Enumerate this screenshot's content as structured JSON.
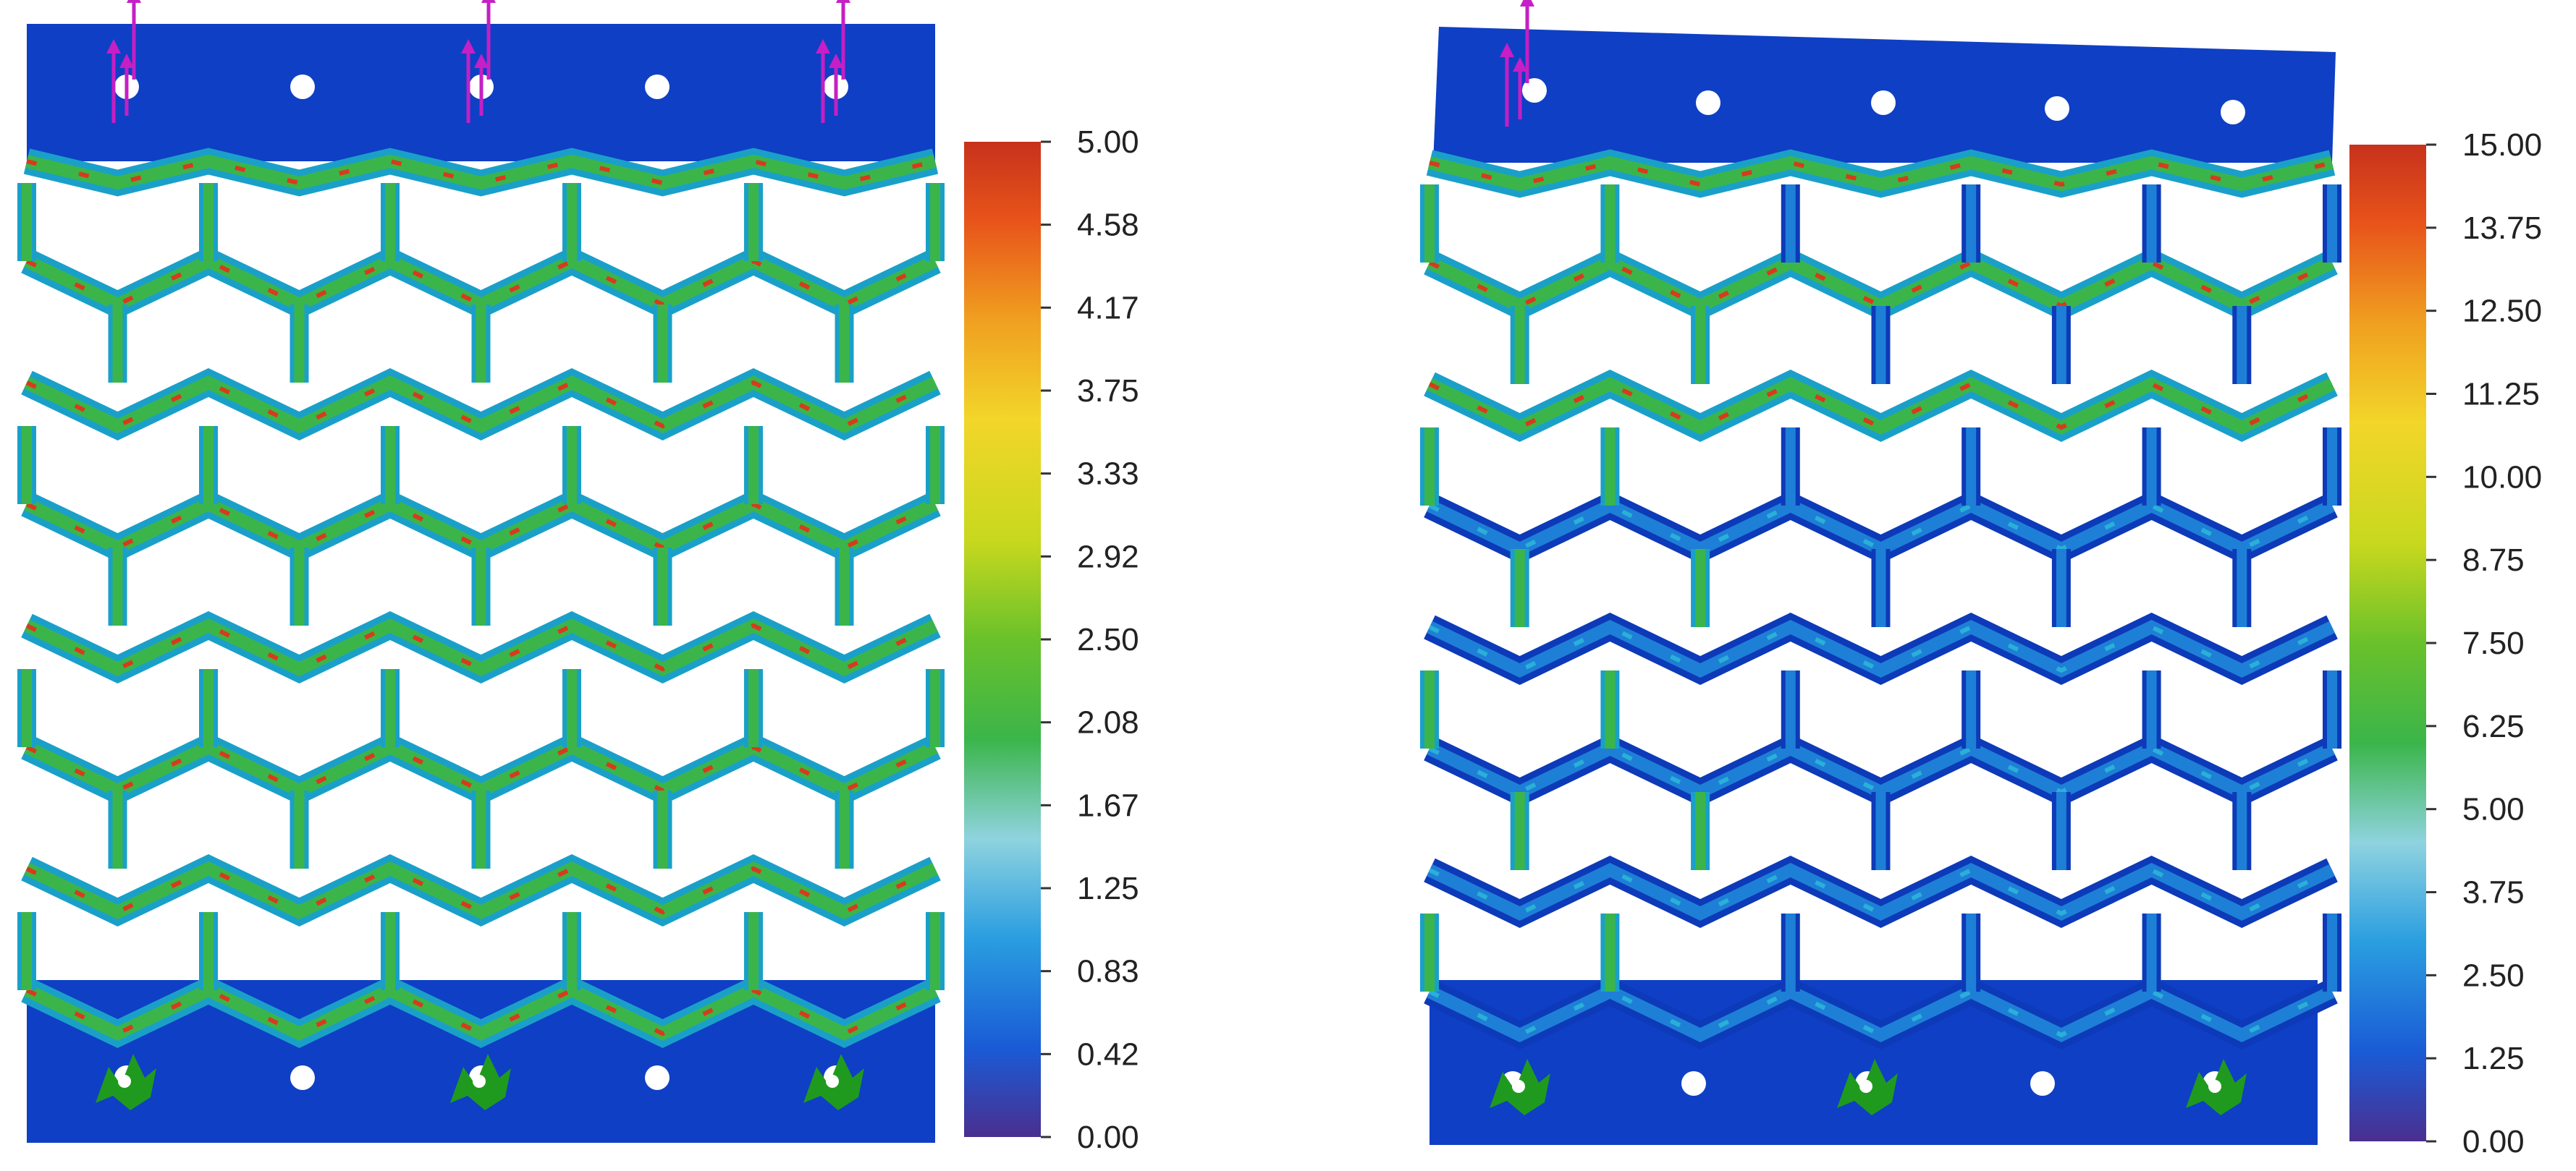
{
  "panels": [
    {
      "id": "left",
      "colorbar": {
        "min": 0.0,
        "max": 5.0,
        "ticks": [
          "5.00",
          "4.58",
          "4.17",
          "3.75",
          "3.33",
          "2.92",
          "2.50",
          "2.08",
          "1.67",
          "1.25",
          "0.83",
          "0.42",
          "0.00"
        ]
      },
      "loaded_holes": 3,
      "fixed_supports": 3
    },
    {
      "id": "right",
      "colorbar": {
        "min": 0.0,
        "max": 15.0,
        "ticks": [
          "15.00",
          "13.75",
          "12.50",
          "11.25",
          "10.00",
          "8.75",
          "7.50",
          "6.25",
          "5.00",
          "3.75",
          "2.50",
          "1.25",
          "0.00"
        ]
      },
      "loaded_holes": 1,
      "fixed_supports": 3
    }
  ],
  "colors": {
    "colormap": [
      "#4a2f8f",
      "#1a5bd6",
      "#2a9ee0",
      "#8fd3df",
      "#3bb54a",
      "#6ac12b",
      "#c8d81e",
      "#f2d62a",
      "#f0a020",
      "#e8541a",
      "#c7321c"
    ],
    "load_arrow": "#c51fc5",
    "support_symbol": "#1f9a1f",
    "structure_base": "#0f3fc4"
  }
}
